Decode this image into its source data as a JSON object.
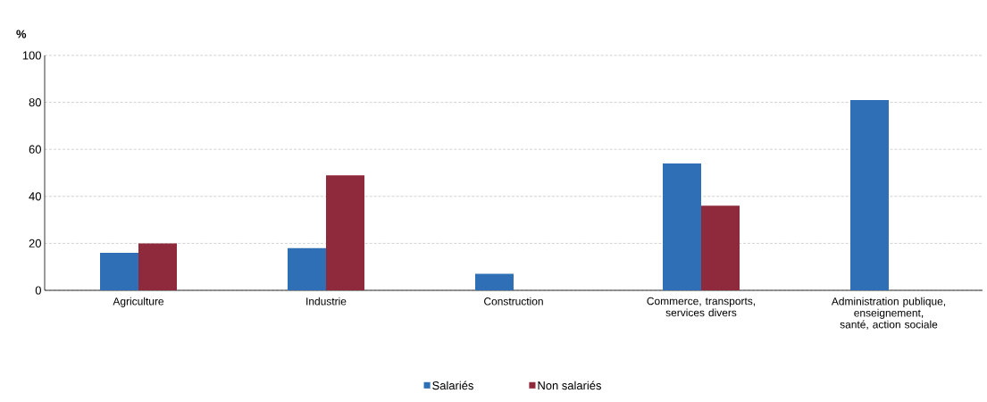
{
  "chart_data": {
    "type": "bar",
    "ylabel": "%",
    "categories": [
      "Agriculture",
      "Industrie",
      "Construction",
      "Commerce, transports, services divers",
      "Administration publique, enseignement, santé, action sociale"
    ],
    "series": [
      {
        "name": "Salariés",
        "color": "#2e6fb5",
        "values": [
          16,
          18,
          7,
          54,
          81
        ]
      },
      {
        "name": "Non salariés",
        "color": "#8e2a3c",
        "values": [
          20,
          49,
          null,
          36,
          null
        ]
      }
    ],
    "ylim": [
      0,
      100
    ],
    "yticks": [
      0,
      20,
      40,
      60,
      80,
      100
    ],
    "grid": "y",
    "legend": "bottom"
  }
}
